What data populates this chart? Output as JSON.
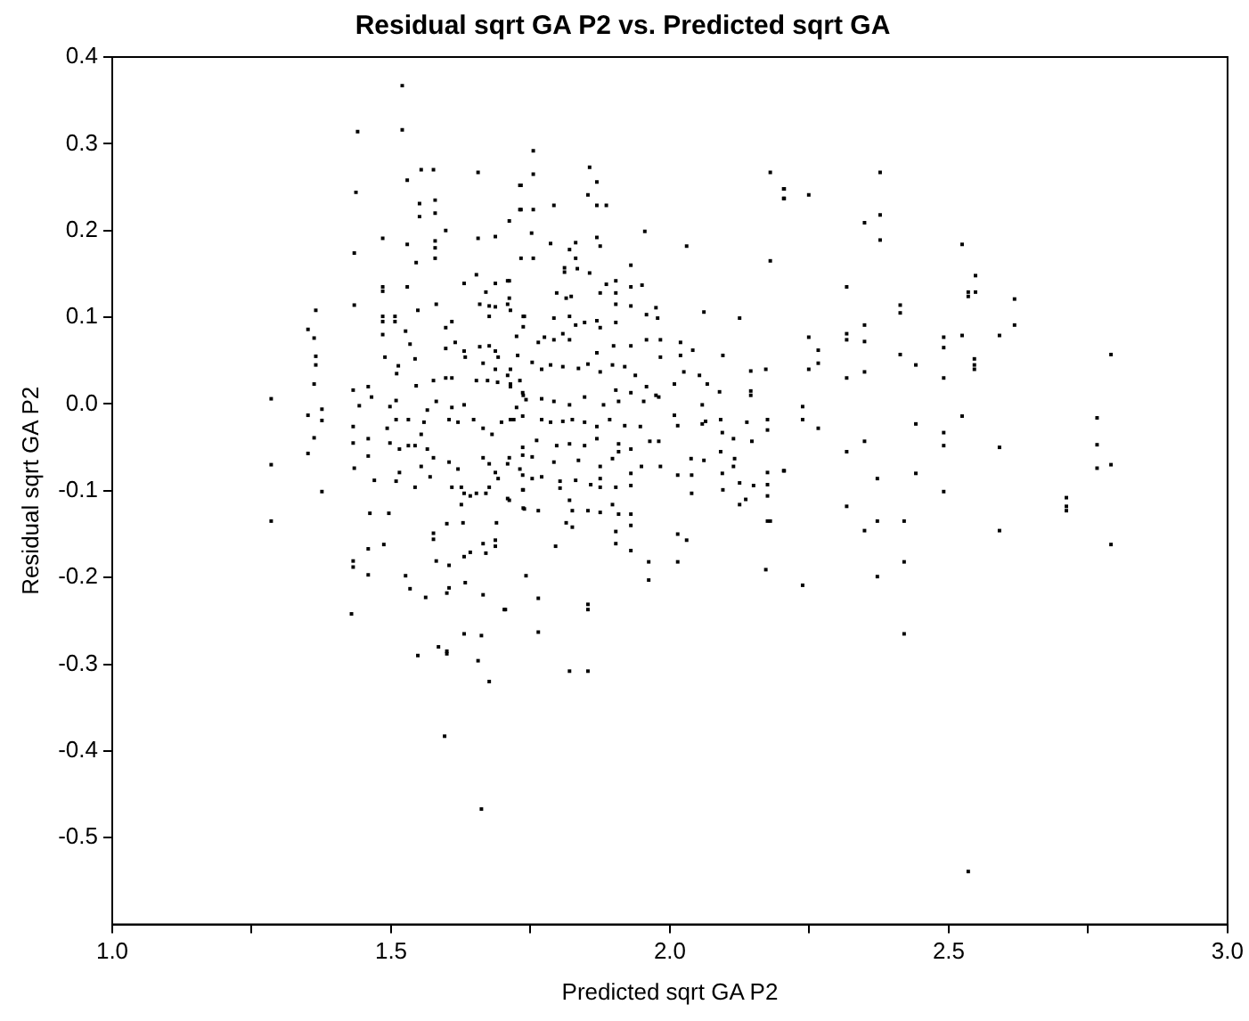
{
  "chart_data": {
    "type": "scatter",
    "title": "Residual sqrt GA P2 vs. Predicted sqrt GA",
    "xlabel": "Predicted sqrt GA P2",
    "ylabel": "Residual sqrt GA P2",
    "color": "#000000",
    "marker": "square",
    "xlim": [
      1,
      3
    ],
    "ylim": [
      -0.6,
      0.4
    ],
    "xticks": [
      {
        "value": 1,
        "label": "1.0"
      },
      {
        "value": 1.25,
        "label": null
      },
      1.5,
      {
        "value": 1.75,
        "label": null
      },
      {
        "value": 2,
        "label": "2.0"
      },
      {
        "value": 2.25,
        "label": null
      },
      2.5,
      {
        "value": 2.75,
        "label": null
      },
      {
        "value": 3,
        "label": "3.0"
      }
    ],
    "yticks": [
      -0.5,
      -0.4,
      -0.3,
      -0.2,
      -0.1,
      {
        "value": 0,
        "label": "0.0"
      },
      0.1,
      0.2,
      0.3,
      0.4
    ],
    "x": [
      1.52,
      1.44,
      1.52,
      1.554,
      1.576,
      1.656,
      1.529,
      1.437,
      1.551,
      1.579,
      1.551,
      1.579,
      1.731,
      1.731,
      1.485,
      1.434,
      1.529,
      1.656,
      1.687,
      1.598,
      1.579,
      1.579,
      1.579,
      1.545,
      1.485,
      1.485,
      1.529,
      1.365,
      1.434,
      1.351,
      1.362,
      1.365,
      1.365,
      1.362,
      1.285,
      1.285,
      1.285,
      1.376,
      1.376,
      1.351,
      1.362,
      1.351,
      1.376,
      1.485,
      1.485,
      1.507,
      1.507,
      1.485,
      1.489,
      1.432,
      1.459,
      1.465,
      1.443,
      1.432,
      1.432,
      1.459,
      1.434,
      1.459,
      1.47,
      1.462,
      1.496,
      1.487,
      1.459,
      1.432,
      1.432,
      1.459,
      1.526,
      1.534,
      1.562,
      1.581,
      1.604,
      1.576,
      1.576,
      1.6,
      1.629,
      1.631,
      1.642,
      1.665,
      1.687,
      1.687,
      1.67,
      1.689,
      1.665,
      1.604,
      1.6,
      1.633,
      1.703,
      1.429,
      1.631,
      1.662,
      1.585,
      1.6,
      1.6,
      1.548,
      1.656,
      1.676,
      1.596,
      1.662,
      1.526,
      1.534,
      1.543,
      1.513,
      1.51,
      1.545,
      1.576,
      1.598,
      1.609,
      1.598,
      1.615,
      1.631,
      1.633,
      1.659,
      1.676,
      1.687,
      1.692,
      1.687,
      1.665,
      1.653,
      1.673,
      1.691,
      1.709,
      1.714,
      1.731,
      1.737,
      1.725,
      1.72,
      1.698,
      1.681,
      1.665,
      1.648,
      1.631,
      1.62,
      1.609,
      1.604,
      1.581,
      1.565,
      1.559,
      1.554,
      1.543,
      1.565,
      1.576,
      1.554,
      1.515,
      1.531,
      1.498,
      1.515,
      1.509,
      1.543,
      1.57,
      1.604,
      1.62,
      1.609,
      1.626,
      1.631,
      1.642,
      1.626,
      1.665,
      1.676,
      1.687,
      1.692,
      1.676,
      1.67,
      1.709,
      1.731,
      1.737,
      1.737,
      1.709,
      1.653,
      1.509,
      1.498,
      1.509,
      1.493,
      1.531,
      1.598,
      1.609,
      1.659,
      1.676,
      1.687,
      1.709,
      1.714,
      1.709,
      1.676,
      1.631,
      1.653,
      1.67,
      1.687,
      1.581,
      1.548,
      1.725,
      1.737,
      1.737,
      1.755,
      1.755,
      1.733,
      1.856,
      1.869,
      1.853,
      1.869,
      1.886,
      1.792,
      1.733,
      1.755,
      1.712,
      1.955,
      1.752,
      1.786,
      1.82,
      1.831,
      1.869,
      1.875,
      2.03,
      2.18,
      2.18,
      2.204,
      2.204,
      1.733,
      1.755,
      1.811,
      1.811,
      1.834,
      1.856,
      1.831,
      1.712,
      1.712,
      1.797,
      1.814,
      1.823,
      1.875,
      1.886,
      1.903,
      1.903,
      1.93,
      1.95,
      1.93,
      1.903,
      1.93,
      1.958,
      1.975,
      1.978,
      1.739,
      1.792,
      1.82,
      1.831,
      1.847,
      1.869,
      1.875,
      1.903,
      1.808,
      1.792,
      1.82,
      1.775,
      1.764,
      1.869,
      1.899,
      1.93,
      1.958,
      1.983,
      1.983,
      2.019,
      2.019,
      2.041,
      2.061,
      2.125,
      2.095,
      2.145,
      2.172,
      1.727,
      1.753,
      1.77,
      1.786,
      1.808,
      1.836,
      1.853,
      1.875,
      1.897,
      1.919,
      1.938,
      1.958,
      1.975,
      2.008,
      2.025,
      2.053,
      2.067,
      2.089,
      2.145,
      2.145,
      1.714,
      1.714,
      1.736,
      1.742,
      1.77,
      1.792,
      1.82,
      1.847,
      1.881,
      1.903,
      1.908,
      1.93,
      1.953,
      1.98,
      2.008,
      2.058,
      2.064,
      2.091,
      2.094,
      2.138,
      2.175,
      2.175,
      1.714,
      1.736,
      1.77,
      1.786,
      1.808,
      1.825,
      1.847,
      1.869,
      1.892,
      1.919,
      1.947,
      2.014,
      2.058,
      2.091,
      2.114,
      2.147,
      1.964,
      1.98,
      1.93,
      1.908,
      1.869,
      1.847,
      1.82,
      1.797,
      1.761,
      1.736,
      1.712,
      1.736,
      1.753,
      1.792,
      1.836,
      1.875,
      1.897,
      1.908,
      1.93,
      1.949,
      1.983,
      2.038,
      2.061,
      2.094,
      2.116,
      2.114,
      2.175,
      2.204,
      2.175,
      2.175,
      2.15,
      2.125,
      2.095,
      2.039,
      2.039,
      2.014,
      1.93,
      1.903,
      1.875,
      1.875,
      1.858,
      1.831,
      1.803,
      1.803,
      1.77,
      1.753,
      1.736,
      1.736,
      1.712,
      1.739,
      1.764,
      1.82,
      1.825,
      1.853,
      1.875,
      1.897,
      1.908,
      1.93,
      1.93,
      1.903,
      1.814,
      1.825,
      1.795,
      1.903,
      1.93,
      1.962,
      2.014,
      2.03,
      2.014,
      1.962,
      2.125,
      2.136,
      2.175,
      2.18,
      2.172,
      1.742,
      1.764,
      1.853,
      1.853,
      1.705,
      1.764,
      1.82,
      1.853,
      2.377,
      2.205,
      2.205,
      2.249,
      2.349,
      2.377,
      2.377,
      2.524,
      2.548,
      2.317,
      2.535,
      2.535,
      2.548,
      2.618,
      2.413,
      2.413,
      2.349,
      2.317,
      2.317,
      2.349,
      2.249,
      2.491,
      2.524,
      2.591,
      2.618,
      2.266,
      2.491,
      2.413,
      2.266,
      2.441,
      2.546,
      2.546,
      2.546,
      2.249,
      2.317,
      2.349,
      2.491,
      2.238,
      2.524,
      2.238,
      2.266,
      2.441,
      2.491,
      2.349,
      2.317,
      2.491,
      2.591,
      2.205,
      2.441,
      2.372,
      2.491,
      2.317,
      2.349,
      2.372,
      2.42,
      2.591,
      2.42,
      2.238,
      2.372,
      2.42,
      2.535,
      2.711,
      2.711,
      2.711,
      2.766,
      2.766,
      2.766,
      2.791,
      2.791,
      2.791
    ],
    "values": [
      0.367,
      0.314,
      0.316,
      0.27,
      0.27,
      0.267,
      0.258,
      0.244,
      0.231,
      0.235,
      0.216,
      0.22,
      0.252,
      0.224,
      0.191,
      0.174,
      0.184,
      0.191,
      0.193,
      0.2,
      0.188,
      0.18,
      0.168,
      0.163,
      0.135,
      0.13,
      0.135,
      0.108,
      0.114,
      0.086,
      0.076,
      0.055,
      0.045,
      0.023,
      0.006,
      -0.07,
      -0.135,
      -0.006,
      -0.019,
      -0.013,
      -0.039,
      -0.057,
      -0.101,
      0.101,
      0.095,
      0.101,
      0.095,
      0.08,
      0.054,
      0.016,
      0.02,
      0.008,
      -0.002,
      -0.026,
      -0.045,
      -0.04,
      -0.074,
      -0.06,
      -0.088,
      -0.126,
      -0.126,
      -0.162,
      -0.167,
      -0.181,
      -0.188,
      -0.197,
      -0.198,
      -0.213,
      -0.223,
      -0.181,
      -0.186,
      -0.149,
      -0.156,
      -0.138,
      -0.137,
      -0.176,
      -0.171,
      -0.161,
      -0.157,
      -0.164,
      -0.172,
      -0.137,
      -0.22,
      -0.212,
      -0.218,
      -0.206,
      -0.237,
      -0.242,
      -0.265,
      -0.267,
      -0.28,
      -0.285,
      -0.288,
      -0.29,
      -0.296,
      -0.32,
      -0.383,
      -0.467,
      0.084,
      0.069,
      0.052,
      0.044,
      0.035,
      0.021,
      0.027,
      0.03,
      0.03,
      0.064,
      0.071,
      0.061,
      0.054,
      0.066,
      0.067,
      0.061,
      0.054,
      0.04,
      0.047,
      0.027,
      0.027,
      0.025,
      0.033,
      0.023,
      0.027,
      0.01,
      -0.004,
      -0.018,
      -0.021,
      -0.035,
      -0.028,
      -0.018,
      -0.001,
      -0.021,
      -0.004,
      -0.018,
      0.003,
      -0.007,
      -0.021,
      -0.035,
      -0.048,
      -0.052,
      -0.062,
      -0.072,
      -0.052,
      -0.048,
      -0.045,
      -0.079,
      -0.089,
      -0.096,
      -0.084,
      -0.067,
      -0.075,
      -0.096,
      -0.096,
      -0.103,
      -0.106,
      -0.116,
      -0.062,
      -0.069,
      -0.079,
      -0.086,
      -0.096,
      -0.103,
      -0.069,
      -0.075,
      -0.099,
      -0.12,
      -0.109,
      -0.103,
      0.004,
      -0.003,
      -0.018,
      -0.028,
      -0.018,
      0.088,
      0.095,
      0.115,
      0.113,
      0.112,
      0.115,
      0.108,
      0.142,
      0.101,
      0.139,
      0.149,
      0.129,
      0.139,
      0.115,
      0.108,
      0.078,
      0.101,
      0.089,
      0.292,
      0.265,
      0.252,
      0.273,
      0.256,
      0.241,
      0.229,
      0.229,
      0.229,
      0.224,
      0.224,
      0.211,
      0.199,
      0.197,
      0.185,
      0.178,
      0.186,
      0.192,
      0.182,
      0.182,
      0.165,
      0.267,
      0.248,
      0.237,
      0.168,
      0.168,
      0.157,
      0.152,
      0.156,
      0.151,
      0.168,
      0.142,
      0.122,
      0.128,
      0.122,
      0.124,
      0.128,
      0.138,
      0.142,
      0.128,
      0.135,
      0.137,
      0.16,
      0.115,
      0.113,
      0.103,
      0.111,
      0.099,
      0.101,
      0.099,
      0.101,
      0.091,
      0.094,
      0.096,
      0.088,
      0.094,
      0.081,
      0.074,
      0.074,
      0.077,
      0.071,
      0.059,
      0.067,
      0.067,
      0.074,
      0.074,
      0.054,
      0.071,
      0.056,
      0.062,
      0.106,
      0.099,
      0.056,
      0.038,
      0.04,
      0.056,
      0.048,
      0.04,
      0.045,
      0.043,
      0.041,
      0.046,
      0.037,
      0.045,
      0.043,
      0.033,
      0.02,
      0.01,
      0.023,
      0.037,
      0.033,
      0.023,
      0.014,
      0.015,
      0.01,
      0.04,
      0.02,
      0.013,
      0.005,
      0.006,
      0.003,
      -0.001,
      0.008,
      -0.001,
      0.016,
      0.003,
      0.013,
      0.003,
      0.008,
      -0.013,
      -0.001,
      -0.02,
      -0.018,
      -0.033,
      -0.021,
      -0.018,
      -0.03,
      -0.018,
      -0.014,
      -0.018,
      -0.021,
      -0.02,
      -0.018,
      -0.021,
      -0.026,
      -0.018,
      -0.025,
      -0.026,
      -0.025,
      -0.023,
      -0.055,
      -0.04,
      -0.043,
      -0.043,
      -0.043,
      -0.052,
      -0.046,
      -0.04,
      -0.048,
      -0.046,
      -0.048,
      -0.042,
      -0.05,
      -0.062,
      -0.059,
      -0.061,
      -0.067,
      -0.065,
      -0.072,
      -0.063,
      -0.055,
      -0.08,
      -0.072,
      -0.072,
      -0.063,
      -0.065,
      -0.08,
      -0.063,
      -0.072,
      -0.079,
      -0.077,
      -0.093,
      -0.106,
      -0.094,
      -0.091,
      -0.099,
      -0.082,
      -0.103,
      -0.082,
      -0.094,
      -0.096,
      -0.086,
      -0.096,
      -0.093,
      -0.088,
      -0.089,
      -0.097,
      -0.084,
      -0.086,
      -0.082,
      -0.099,
      -0.111,
      -0.121,
      -0.123,
      -0.111,
      -0.123,
      -0.123,
      -0.125,
      -0.116,
      -0.127,
      -0.127,
      -0.14,
      -0.147,
      -0.137,
      -0.142,
      -0.164,
      -0.161,
      -0.169,
      -0.182,
      -0.15,
      -0.157,
      -0.182,
      -0.203,
      -0.116,
      -0.11,
      -0.135,
      -0.135,
      -0.191,
      -0.198,
      -0.224,
      -0.231,
      -0.237,
      -0.237,
      -0.263,
      -0.308,
      -0.308,
      0.267,
      0.248,
      0.237,
      0.241,
      0.209,
      0.218,
      0.189,
      0.184,
      0.148,
      0.135,
      0.129,
      0.124,
      0.129,
      0.121,
      0.114,
      0.105,
      0.091,
      0.081,
      0.074,
      0.072,
      0.077,
      0.077,
      0.079,
      0.079,
      0.091,
      0.062,
      0.065,
      0.057,
      0.047,
      0.045,
      0.052,
      0.045,
      0.04,
      0.04,
      0.03,
      0.037,
      0.03,
      -0.003,
      -0.014,
      -0.018,
      -0.028,
      -0.023,
      -0.033,
      -0.043,
      -0.055,
      -0.048,
      -0.05,
      -0.077,
      -0.08,
      -0.086,
      -0.101,
      -0.118,
      -0.146,
      -0.135,
      -0.135,
      -0.146,
      -0.182,
      -0.209,
      -0.199,
      -0.265,
      -0.539,
      -0.108,
      -0.118,
      -0.123,
      -0.016,
      -0.047,
      -0.074,
      0.057,
      -0.07,
      -0.162
    ]
  }
}
